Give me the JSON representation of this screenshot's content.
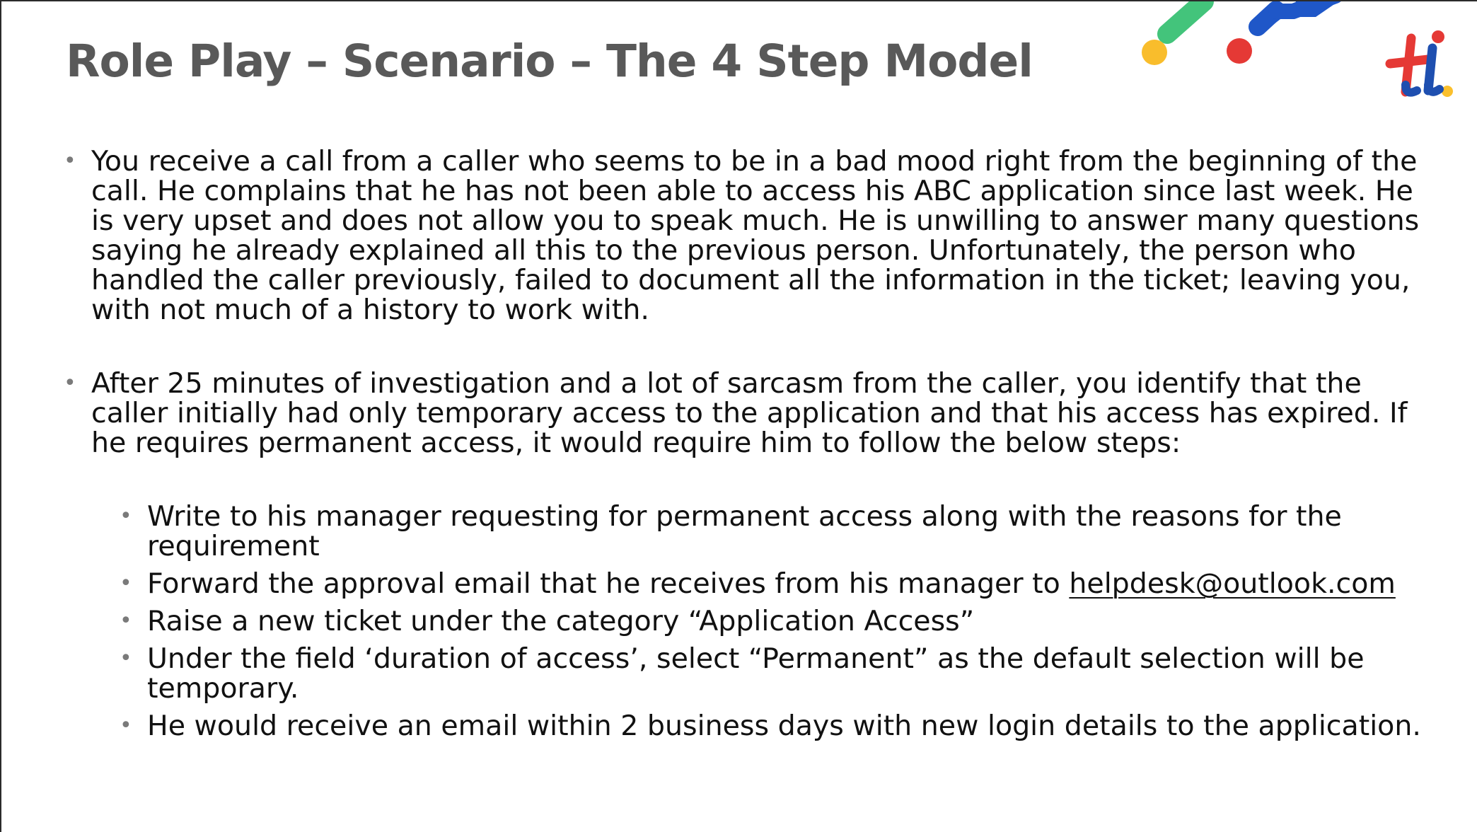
{
  "slide": {
    "title": "Role Play – Scenario – The 4 Step Model",
    "bullets": [
      "You receive a call from a caller who seems to be in a bad mood right from the beginning of the call. He complains that he has not been able to access his ABC application since last week. He is very upset and does not allow you to speak much. He is unwilling to answer many questions saying he already explained all this to the previous person. Unfortunately, the person who handled the caller previously, failed to document all the information in the ticket; leaving you, with not much of a history to work with.",
      "After 25 minutes of investigation and a lot of sarcasm from the caller, you identify that the caller initially had only temporary access to the application and that his access has expired. If he requires permanent access, it would require him to follow the below steps:"
    ],
    "steps": {
      "step1": "Write to his manager requesting for permanent access along with the reasons for the requirement",
      "step2_prefix": "Forward the approval email that he receives from his manager to ",
      "step2_email": "helpdesk@outlook.com",
      "step3": "Raise a new ticket under the category “Application Access”",
      "step4": "Under the field ‘duration of access’, select “Permanent” as the default selection will be temporary.",
      "step5": "He would receive an email within 2 business days with new login details to the application."
    },
    "bullet_glyph": "•"
  },
  "logo": {
    "plus_color": "#e53935",
    "i_color": "#1e4fb0",
    "dot_color": "#fbc02d"
  },
  "decoration": {
    "colors": {
      "green": "#43c47b",
      "blue": "#1f57c8",
      "yellow": "#f9bd2c",
      "red": "#e53935"
    }
  }
}
